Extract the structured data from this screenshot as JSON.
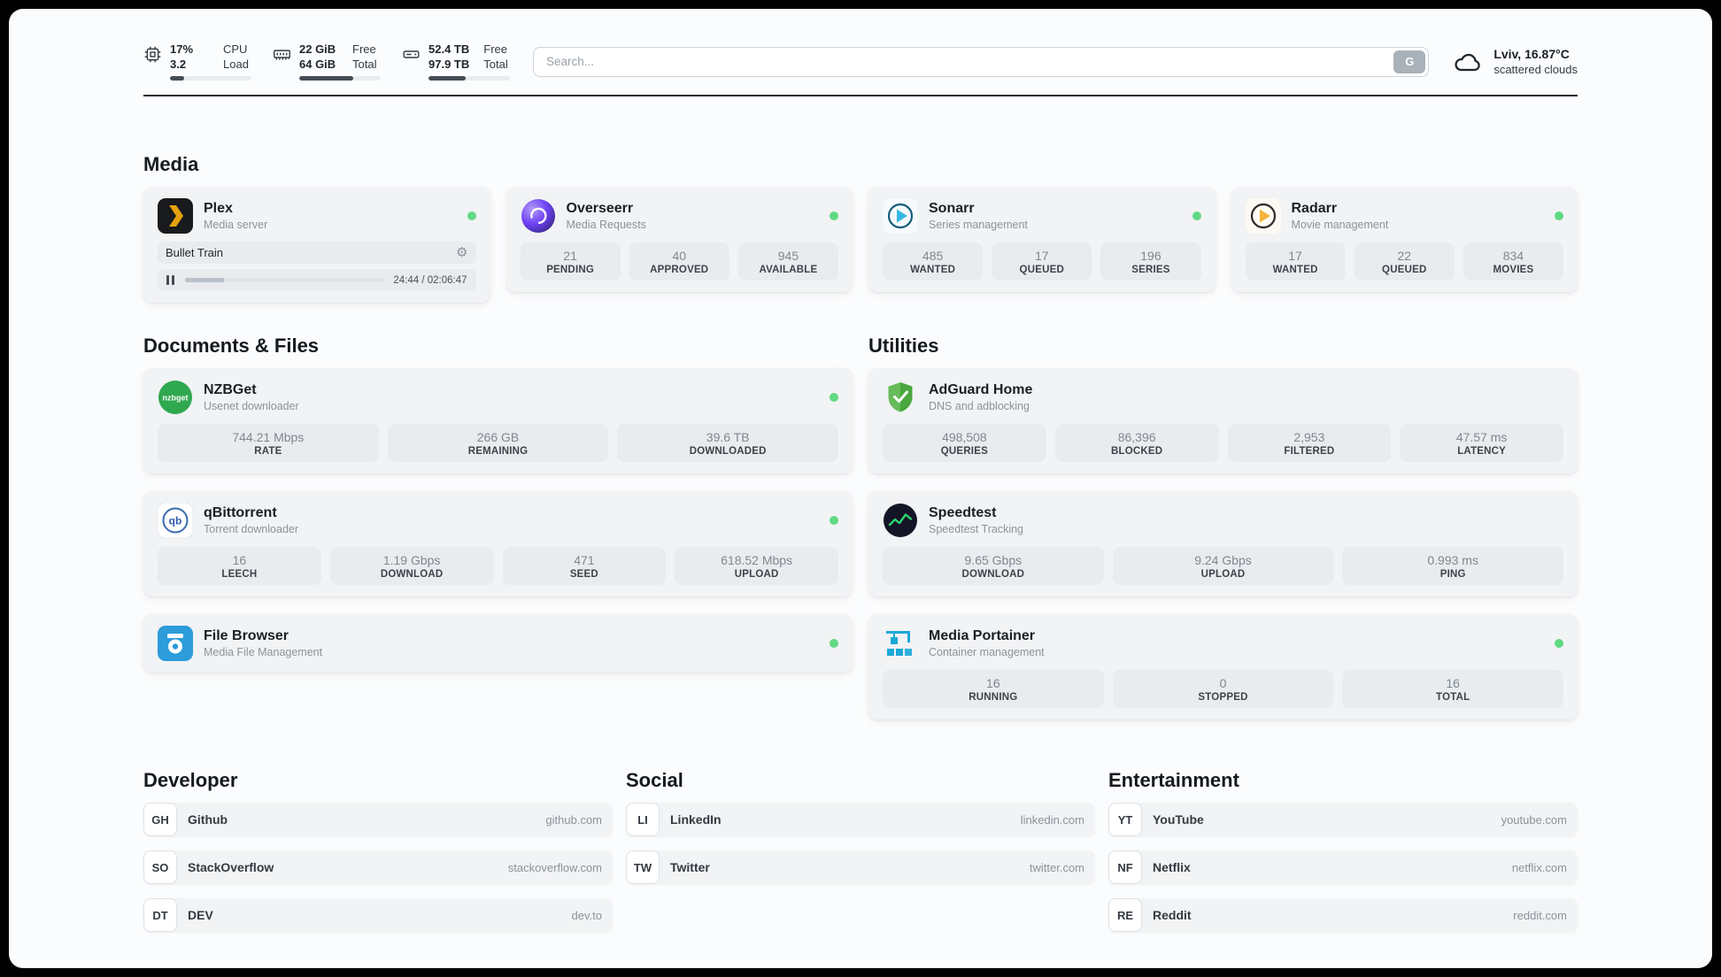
{
  "colors": {
    "status_online": "#61d983",
    "progress_fill": "#454c54",
    "card_bg": "#f1f3f5",
    "tile_bg": "#e9ecef"
  },
  "header": {
    "cpu": {
      "icon": "cpu-icon",
      "value1": "17%",
      "value2": "3.2",
      "label1": "CPU",
      "label2": "Load",
      "progress": 17
    },
    "ram": {
      "icon": "ram-icon",
      "value1": "22 GiB",
      "value2": "64 GiB",
      "label1": "Free",
      "label2": "Total",
      "progress": 66
    },
    "disk": {
      "icon": "disk-icon",
      "value1": "52.4 TB",
      "value2": "97.9 TB",
      "label1": "Free",
      "label2": "Total",
      "progress": 46
    },
    "search": {
      "placeholder": "Search...",
      "engine_button": "G"
    },
    "weather": {
      "icon": "cloud-icon",
      "location": "Lviv, 16.87°C",
      "condition": "scattered clouds"
    }
  },
  "sections": {
    "media": "Media",
    "documents": "Documents & Files",
    "utilities": "Utilities",
    "developer": "Developer",
    "social": "Social",
    "entertainment": "Entertainment"
  },
  "apps": {
    "plex": {
      "icon": "plex-icon",
      "name": "Plex",
      "subtitle": "Media server",
      "status": "online",
      "now_playing": "Bullet Train",
      "time": "24:44 / 02:06:47",
      "progress": 19.5
    },
    "overseerr": {
      "icon": "overseerr-icon",
      "name": "Overseerr",
      "subtitle": "Media Requests",
      "status": "online",
      "stats": [
        {
          "value": "21",
          "label": "PENDING"
        },
        {
          "value": "40",
          "label": "APPROVED"
        },
        {
          "value": "945",
          "label": "AVAILABLE"
        }
      ]
    },
    "sonarr": {
      "icon": "sonarr-icon",
      "name": "Sonarr",
      "subtitle": "Series management",
      "status": "online",
      "stats": [
        {
          "value": "485",
          "label": "WANTED"
        },
        {
          "value": "17",
          "label": "QUEUED"
        },
        {
          "value": "196",
          "label": "SERIES"
        }
      ]
    },
    "radarr": {
      "icon": "radarr-icon",
      "name": "Radarr",
      "subtitle": "Movie management",
      "status": "online",
      "stats": [
        {
          "value": "17",
          "label": "WANTED"
        },
        {
          "value": "22",
          "label": "QUEUED"
        },
        {
          "value": "834",
          "label": "MOVIES"
        }
      ]
    },
    "nzbget": {
      "icon": "nzbget-icon",
      "name": "NZBGet",
      "subtitle": "Usenet downloader",
      "status": "online",
      "stats": [
        {
          "value": "744.21 Mbps",
          "label": "RATE"
        },
        {
          "value": "266 GB",
          "label": "REMAINING"
        },
        {
          "value": "39.6 TB",
          "label": "DOWNLOADED"
        }
      ]
    },
    "qbittorrent": {
      "icon": "qbittorrent-icon",
      "name": "qBittorrent",
      "subtitle": "Torrent downloader",
      "status": "online",
      "stats": [
        {
          "value": "16",
          "label": "LEECH"
        },
        {
          "value": "1.19 Gbps",
          "label": "DOWNLOAD"
        },
        {
          "value": "471",
          "label": "SEED"
        },
        {
          "value": "618.52 Mbps",
          "label": "UPLOAD"
        }
      ]
    },
    "filebrowser": {
      "icon": "filebrowser-icon",
      "name": "File Browser",
      "subtitle": "Media File Management",
      "status": "online"
    },
    "adguard": {
      "icon": "adguard-icon",
      "name": "AdGuard Home",
      "subtitle": "DNS and adblocking",
      "stats": [
        {
          "value": "498,508",
          "label": "QUERIES"
        },
        {
          "value": "86,396",
          "label": "BLOCKED"
        },
        {
          "value": "2,953",
          "label": "FILTERED"
        },
        {
          "value": "47.57 ms",
          "label": "LATENCY"
        }
      ]
    },
    "speedtest": {
      "icon": "speedtest-icon",
      "name": "Speedtest",
      "subtitle": "Speedtest Tracking",
      "stats": [
        {
          "value": "9.65 Gbps",
          "label": "DOWNLOAD"
        },
        {
          "value": "9.24 Gbps",
          "label": "UPLOAD"
        },
        {
          "value": "0.993 ms",
          "label": "PING"
        }
      ]
    },
    "portainer": {
      "icon": "portainer-icon",
      "name": "Media Portainer",
      "subtitle": "Container management",
      "status": "online",
      "stats": [
        {
          "value": "16",
          "label": "RUNNING"
        },
        {
          "value": "0",
          "label": "STOPPED"
        },
        {
          "value": "16",
          "label": "TOTAL"
        }
      ]
    }
  },
  "bookmarks": {
    "developer": [
      {
        "abbr": "GH",
        "name": "Github",
        "url": "github.com"
      },
      {
        "abbr": "SO",
        "name": "StackOverflow",
        "url": "stackoverflow.com"
      },
      {
        "abbr": "DT",
        "name": "DEV",
        "url": "dev.to"
      }
    ],
    "social": [
      {
        "abbr": "LI",
        "name": "LinkedIn",
        "url": "linkedin.com"
      },
      {
        "abbr": "TW",
        "name": "Twitter",
        "url": "twitter.com"
      }
    ],
    "entertainment": [
      {
        "abbr": "YT",
        "name": "YouTube",
        "url": "youtube.com"
      },
      {
        "abbr": "NF",
        "name": "Netflix",
        "url": "netflix.com"
      },
      {
        "abbr": "RE",
        "name": "Reddit",
        "url": "reddit.com"
      }
    ]
  }
}
